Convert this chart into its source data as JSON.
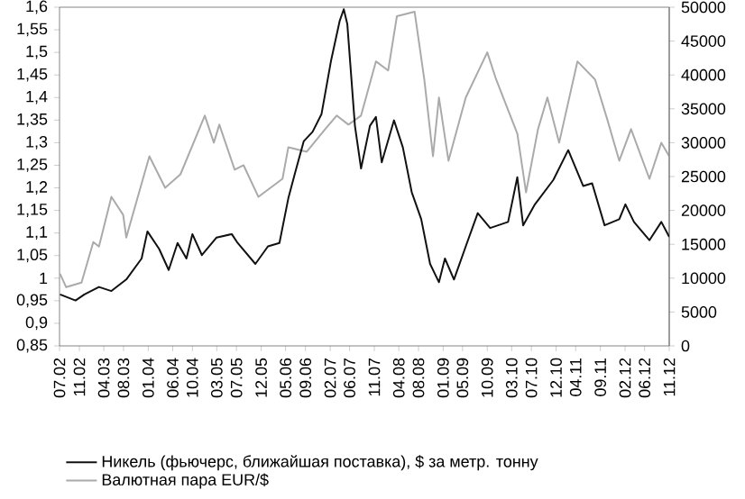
{
  "chart_data": {
    "type": "line",
    "xlim": [
      "2002-07",
      "2012-11"
    ],
    "xticks": [
      {
        "value": "2002-07",
        "label": "07.02"
      },
      {
        "value": "2002-11",
        "label": "11.02"
      },
      {
        "value": "2003-04",
        "label": "04.03"
      },
      {
        "value": "2003-08",
        "label": "08.03"
      },
      {
        "value": "2004-01",
        "label": "01.04"
      },
      {
        "value": "2004-06",
        "label": "06.04"
      },
      {
        "value": "2004-10",
        "label": "10.04"
      },
      {
        "value": "2005-03",
        "label": "03.05"
      },
      {
        "value": "2005-07",
        "label": "07.05"
      },
      {
        "value": "2005-12",
        "label": "12.05"
      },
      {
        "value": "2006-05",
        "label": "05.06"
      },
      {
        "value": "2006-09",
        "label": "09.06"
      },
      {
        "value": "2007-02",
        "label": "02.07"
      },
      {
        "value": "2007-06",
        "label": "06.07"
      },
      {
        "value": "2007-11",
        "label": "11.07"
      },
      {
        "value": "2008-04",
        "label": "04.08"
      },
      {
        "value": "2008-08",
        "label": "08.08"
      },
      {
        "value": "2009-01",
        "label": "01.09"
      },
      {
        "value": "2009-05",
        "label": "05.09"
      },
      {
        "value": "2009-10",
        "label": "10.09"
      },
      {
        "value": "2010-03",
        "label": "03.10"
      },
      {
        "value": "2010-07",
        "label": "07.10"
      },
      {
        "value": "2010-12",
        "label": "12.10"
      },
      {
        "value": "2011-04",
        "label": "04.11"
      },
      {
        "value": "2011-09",
        "label": "09.11"
      },
      {
        "value": "2012-02",
        "label": "02.12"
      },
      {
        "value": "2012-06",
        "label": "06.12"
      },
      {
        "value": "2012-11",
        "label": "11.12"
      }
    ],
    "ylim": [
      0.85,
      1.6
    ],
    "yticks": [
      {
        "value": 0.85,
        "label": "0,85"
      },
      {
        "value": 0.9,
        "label": "0,9"
      },
      {
        "value": 0.95,
        "label": "0,95"
      },
      1,
      {
        "value": 1.05,
        "label": "1,05"
      },
      {
        "value": 1.1,
        "label": "1,1"
      },
      {
        "value": 1.15,
        "label": "1,15"
      },
      {
        "value": 1.2,
        "label": "1,2"
      },
      {
        "value": 1.25,
        "label": "1,25"
      },
      {
        "value": 1.3,
        "label": "1,3"
      },
      {
        "value": 1.35,
        "label": "1,35"
      },
      {
        "value": 1.4,
        "label": "1,4"
      },
      {
        "value": 1.45,
        "label": "1,45"
      },
      {
        "value": 1.5,
        "label": "1,5"
      },
      {
        "value": 1.55,
        "label": "1,55"
      },
      {
        "value": 1.6,
        "label": "1,6"
      }
    ],
    "y2lim": [
      0,
      50000
    ],
    "y2ticks": [
      0,
      5000,
      10000,
      15000,
      20000,
      25000,
      30000,
      35000,
      40000,
      45000,
      50000
    ],
    "legend": "bottom",
    "series": [
      {
        "name": "Никель (фьючерс, ближайшая поставка), $ за метр. тонну",
        "color": "#111111",
        "axis": "y2",
        "x": [
          "2002-07-04",
          "2002-10-08",
          "2002-12-02",
          "2003-03-02",
          "2003-05-18",
          "2003-08-18",
          "2003-11-21",
          "2003-12-27",
          "2004-03-09",
          "2004-05-07",
          "2004-07-01",
          "2004-08-25",
          "2004-10-01",
          "2004-11-29",
          "2005-02-28",
          "2005-06-02",
          "2005-07-08",
          "2005-10-26",
          "2006-01-12",
          "2006-03-24",
          "2006-05-18",
          "2006-06-27",
          "2006-08-21",
          "2006-10-15",
          "2006-12-09",
          "2007-02-07",
          "2007-04-01",
          "2007-04-26",
          "2007-05-18",
          "2007-07-04",
          "2007-08-11",
          "2007-10-05",
          "2007-11-11",
          "2007-12-17",
          "2008-03-02",
          "2008-04-26",
          "2008-06-20",
          "2008-08-18",
          "2008-10-12",
          "2008-12-06",
          "2009-01-12",
          "2009-03-09",
          "2009-05-21",
          "2009-08-03",
          "2009-10-19",
          "2010-02-07",
          "2010-04-05",
          "2010-05-11",
          "2010-07-23",
          "2010-11-14",
          "2011-02-14",
          "2011-05-18",
          "2011-07-12",
          "2011-09-27",
          "2011-12-27",
          "2012-02-03",
          "2012-03-27",
          "2012-07-01",
          "2012-09-13",
          "2012-11-01"
        ],
        "values": [
          7600,
          6700,
          7600,
          8700,
          8100,
          9800,
          12900,
          16900,
          14300,
          11200,
          15200,
          12900,
          16500,
          13400,
          16000,
          16500,
          15200,
          12100,
          14700,
          15200,
          21800,
          25400,
          30200,
          31600,
          34200,
          42200,
          48000,
          49700,
          47500,
          32500,
          26200,
          32500,
          33800,
          27100,
          33300,
          29300,
          22700,
          18700,
          12100,
          9400,
          12900,
          9800,
          14700,
          19600,
          17400,
          18300,
          24900,
          17800,
          20900,
          24500,
          28900,
          23600,
          24000,
          17800,
          18700,
          20900,
          18300,
          15600,
          18300,
          16100
        ]
      },
      {
        "name": "Валютная пара EUR/$",
        "color": "#aaaaaa",
        "axis": "y",
        "x": [
          "2002-07-04",
          "2002-08-11",
          "2002-11-14",
          "2003-01-26",
          "2003-03-02",
          "2003-05-18",
          "2003-07-30",
          "2003-08-18",
          "2004-01-08",
          "2004-04-15",
          "2004-07-19",
          "2004-12-17",
          "2005-02-11",
          "2005-03-17",
          "2005-06-20",
          "2005-08-14",
          "2005-11-14",
          "2006-04-12",
          "2006-05-18",
          "2006-09-09",
          "2007-01-01",
          "2007-03-13",
          "2007-05-25",
          "2007-08-11",
          "2007-11-11",
          "2008-01-26",
          "2008-03-20",
          "2008-07-08",
          "2008-09-06",
          "2008-10-30",
          "2008-12-06",
          "2009-02-03",
          "2009-05-21",
          "2009-10-01",
          "2009-11-25",
          "2010-04-05",
          "2010-05-29",
          "2010-08-11",
          "2010-10-08",
          "2010-12-20",
          "2011-04-12",
          "2011-07-30",
          "2011-10-15",
          "2011-12-27",
          "2012-03-09",
          "2012-07-01",
          "2012-09-13",
          "2012-11-01"
        ],
        "values": [
          1.01,
          0.98,
          0.99,
          1.08,
          1.07,
          1.18,
          1.14,
          1.09,
          1.27,
          1.2,
          1.23,
          1.36,
          1.3,
          1.34,
          1.24,
          1.25,
          1.18,
          1.22,
          1.29,
          1.28,
          1.33,
          1.36,
          1.34,
          1.36,
          1.48,
          1.46,
          1.58,
          1.59,
          1.44,
          1.27,
          1.4,
          1.26,
          1.4,
          1.5,
          1.44,
          1.32,
          1.19,
          1.33,
          1.4,
          1.3,
          1.48,
          1.44,
          1.35,
          1.26,
          1.33,
          1.22,
          1.3,
          1.27
        ]
      }
    ]
  }
}
